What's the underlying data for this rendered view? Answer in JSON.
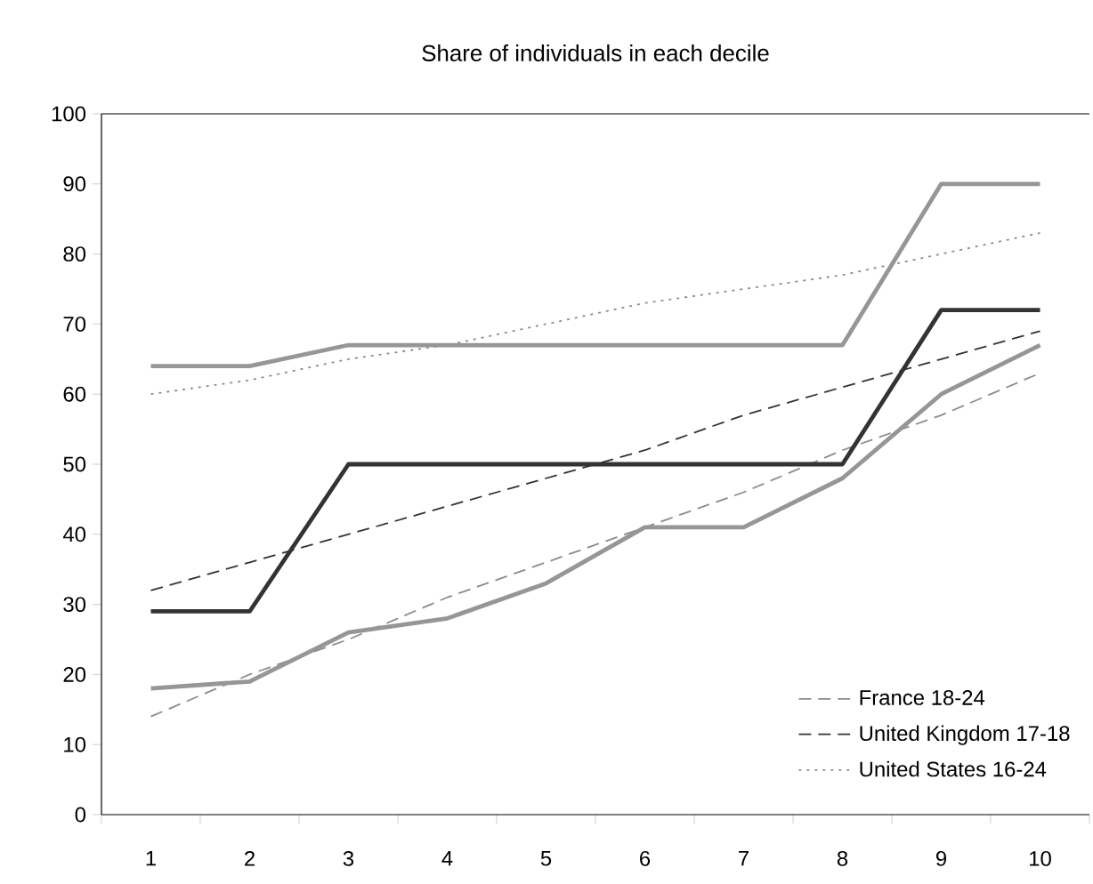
{
  "chart_data": {
    "type": "line",
    "title": "Share of individuals in each decile",
    "categories": [
      "1",
      "2",
      "3",
      "4",
      "5",
      "6",
      "7",
      "8",
      "9",
      "10"
    ],
    "ylim": [
      0,
      100
    ],
    "yticks": [
      0,
      10,
      20,
      30,
      40,
      50,
      60,
      70,
      80,
      90,
      100
    ],
    "grid": false,
    "legend": "bottom right",
    "marker": "none",
    "series": [
      {
        "name": "France 18-24",
        "color": "#8c8c8c",
        "line_style": "dashed",
        "values": [
          14,
          20,
          25,
          31,
          36,
          41,
          46,
          52,
          57,
          63
        ]
      },
      {
        "name": "United Kingdom 17-18",
        "color": "#333333",
        "line_style": "dashed",
        "values": [
          32,
          36,
          40,
          44,
          48,
          52,
          57,
          61,
          65,
          69
        ]
      },
      {
        "name": "United States 16-24",
        "color": "#8c8c8c",
        "line_style": "dotted",
        "values": [
          60,
          62,
          65,
          67,
          70,
          73,
          75,
          77,
          80,
          83
        ]
      },
      {
        "color": "#969696",
        "line_style": "solid",
        "values": [
          64,
          64,
          67,
          67,
          67,
          67,
          67,
          67,
          90,
          90
        ]
      },
      {
        "color": "#333333",
        "line_style": "solid",
        "values": [
          29,
          29,
          50,
          50,
          50,
          50,
          50,
          50,
          72,
          72
        ]
      },
      {
        "color": "#969696",
        "line_style": "solid",
        "values": [
          18,
          19,
          26,
          28,
          33,
          41,
          41,
          48,
          60,
          67
        ]
      }
    ]
  }
}
